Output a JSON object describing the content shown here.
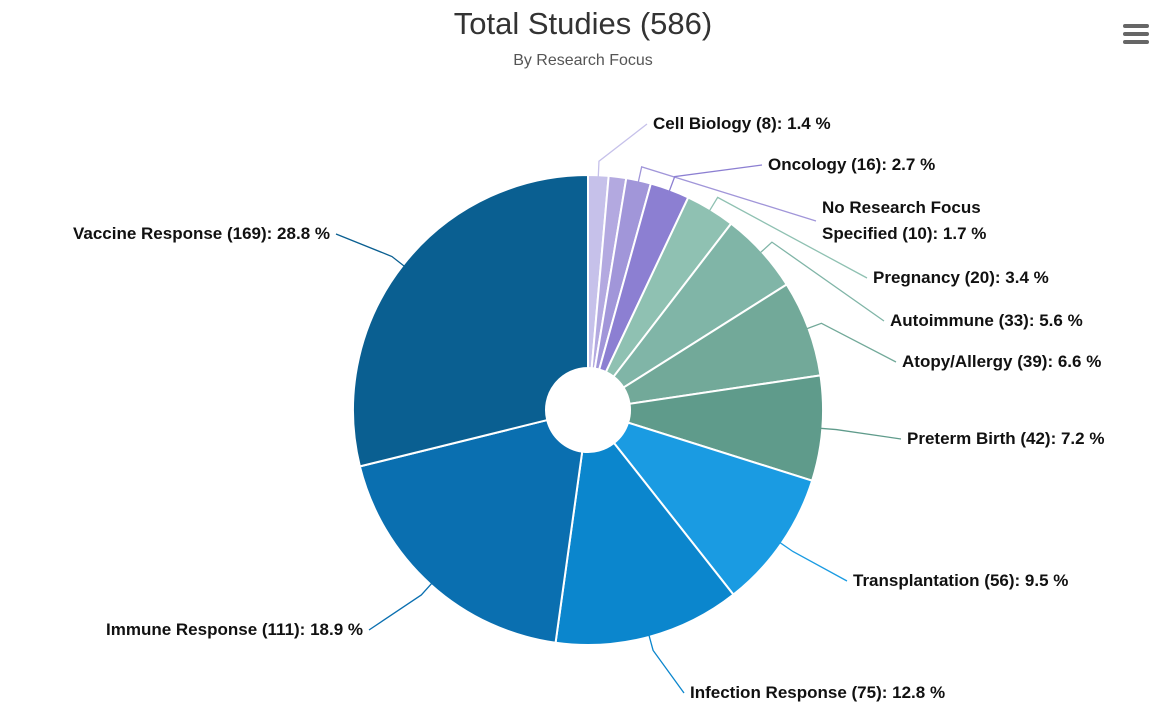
{
  "chart_data": {
    "type": "pie",
    "title": "Total Studies (586)",
    "subtitle": "By Research Focus",
    "values": [
      1.4,
      1.2,
      1.7,
      2.7,
      3.4,
      5.6,
      6.6,
      7.2,
      9.5,
      12.8,
      18.9,
      28.8
    ],
    "value_labels": [
      "Cell Biology (8): 1.4 %",
      null,
      "No Research Focus Specified (10): 1.7 %",
      "Oncology (16): 2.7 %",
      "Pregnancy (20): 3.4 %",
      "Autoimmune (33): 5.6 %",
      "Atopy/Allergy (39): 6.6 %",
      "Preterm Birth (42): 7.2 %",
      "Transplantation (56): 9.5 %",
      "Infection Response (75): 12.8 %",
      "Immune Response (111): 18.9 %",
      "Vaccine Response (169): 28.8 %"
    ],
    "colors": [
      "#c6c1ea",
      "#b3a9e0",
      "#a196d9",
      "#8c7fd2",
      "#8fc1b2",
      "#80b5a7",
      "#72a999",
      "#5f9b8b",
      "#1a9be2",
      "#0b86cd",
      "#0a6fb0",
      "#0a5f91"
    ]
  }
}
